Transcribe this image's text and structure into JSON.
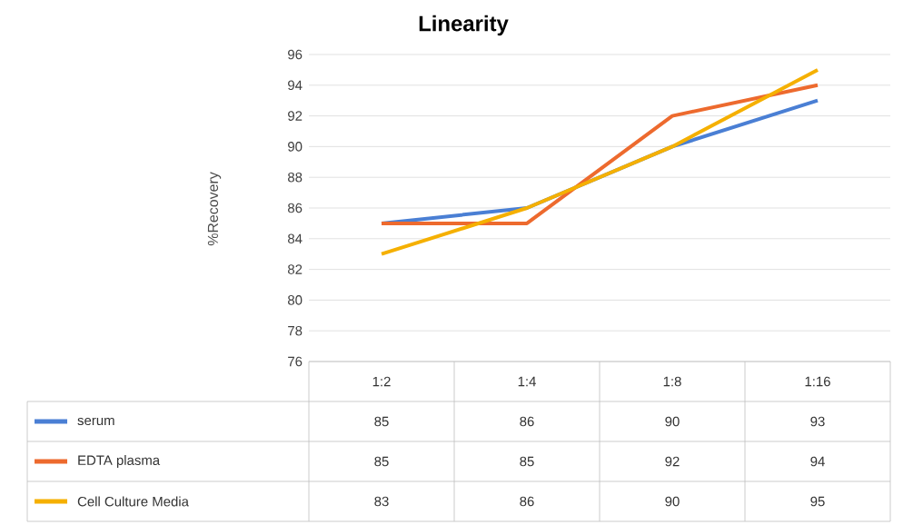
{
  "chart_data": {
    "type": "line",
    "title": "Linearity",
    "ylabel": "%Recovery",
    "categories": [
      "1:2",
      "1:4",
      "1:8",
      "1:16"
    ],
    "series": [
      {
        "name": "serum",
        "color": "#4a7fd4",
        "values": [
          85,
          86,
          90,
          93
        ]
      },
      {
        "name": "EDTA plasma",
        "color": "#ed6a2e",
        "values": [
          85,
          85,
          92,
          94
        ]
      },
      {
        "name": "Cell Culture Media",
        "color": "#f5b000",
        "values": [
          83,
          86,
          90,
          95
        ]
      }
    ],
    "ylim": [
      76,
      96
    ],
    "yticks": [
      76,
      78,
      80,
      82,
      84,
      86,
      88,
      90,
      92,
      94,
      96
    ],
    "grid": "y",
    "legend": "bottom",
    "data_labels": true,
    "marker": "none",
    "line_style": "solid"
  }
}
